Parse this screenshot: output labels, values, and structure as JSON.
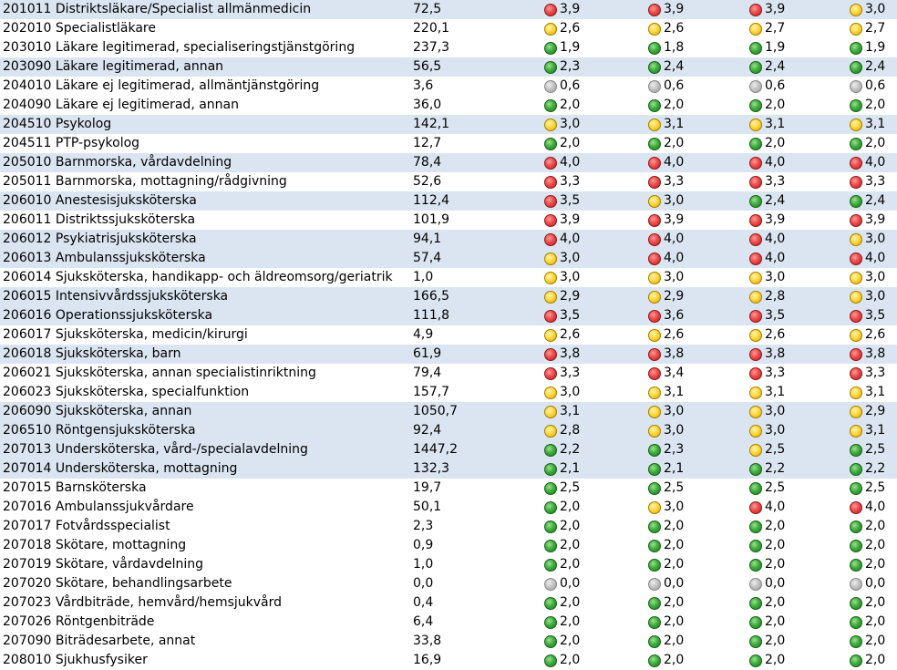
{
  "colors": {
    "row_highlight": "#dbe5f1",
    "status_red": "#ec4b4b",
    "status_yellow": "#ffd83f",
    "status_green": "#3fad3f",
    "status_grey": "#c4c4c4"
  },
  "rows": [
    {
      "code": "201011",
      "title": "Distriktsläkare/Specialist allmänmedicin",
      "value": "72,5",
      "highlight": true,
      "indicators": [
        {
          "status": "red",
          "value": "3,9"
        },
        {
          "status": "red",
          "value": "3,9"
        },
        {
          "status": "red",
          "value": "3,9"
        },
        {
          "status": "yellow",
          "value": "3,0"
        }
      ]
    },
    {
      "code": "202010",
      "title": "Specialistläkare",
      "value": "220,1",
      "highlight": false,
      "indicators": [
        {
          "status": "yellow",
          "value": "2,6"
        },
        {
          "status": "yellow",
          "value": "2,6"
        },
        {
          "status": "yellow",
          "value": "2,7"
        },
        {
          "status": "yellow",
          "value": "2,7"
        }
      ]
    },
    {
      "code": "203010",
      "title": "Läkare legitimerad, specialiseringstjänstgöring",
      "value": "237,3",
      "highlight": false,
      "indicators": [
        {
          "status": "green",
          "value": "1,9"
        },
        {
          "status": "green",
          "value": "1,8"
        },
        {
          "status": "green",
          "value": "1,9"
        },
        {
          "status": "green",
          "value": "1,9"
        }
      ]
    },
    {
      "code": "203090",
      "title": "Läkare legitimerad, annan",
      "value": "56,5",
      "highlight": true,
      "indicators": [
        {
          "status": "green",
          "value": "2,3"
        },
        {
          "status": "green",
          "value": "2,4"
        },
        {
          "status": "green",
          "value": "2,4"
        },
        {
          "status": "green",
          "value": "2,4"
        }
      ]
    },
    {
      "code": "204010",
      "title": "Läkare ej legitimerad, allmäntjänstgöring",
      "value": "3,6",
      "highlight": false,
      "indicators": [
        {
          "status": "grey",
          "value": "0,6"
        },
        {
          "status": "grey",
          "value": "0,6"
        },
        {
          "status": "grey",
          "value": "0,6"
        },
        {
          "status": "grey",
          "value": "0,6"
        }
      ]
    },
    {
      "code": "204090",
      "title": "Läkare ej legitimerad, annan",
      "value": "36,0",
      "highlight": false,
      "indicators": [
        {
          "status": "green",
          "value": "2,0"
        },
        {
          "status": "green",
          "value": "2,0"
        },
        {
          "status": "green",
          "value": "2,0"
        },
        {
          "status": "green",
          "value": "2,0"
        }
      ]
    },
    {
      "code": "204510",
      "title": "Psykolog",
      "value": "142,1",
      "highlight": true,
      "indicators": [
        {
          "status": "yellow",
          "value": "3,0"
        },
        {
          "status": "yellow",
          "value": "3,1"
        },
        {
          "status": "yellow",
          "value": "3,1"
        },
        {
          "status": "yellow",
          "value": "3,1"
        }
      ]
    },
    {
      "code": "204511",
      "title": "PTP-psykolog",
      "value": "12,7",
      "highlight": false,
      "indicators": [
        {
          "status": "green",
          "value": "2,0"
        },
        {
          "status": "green",
          "value": "2,0"
        },
        {
          "status": "green",
          "value": "2,0"
        },
        {
          "status": "green",
          "value": "2,0"
        }
      ]
    },
    {
      "code": "205010",
      "title": "Barnmorska, vårdavdelning",
      "value": "78,4",
      "highlight": true,
      "indicators": [
        {
          "status": "red",
          "value": "4,0"
        },
        {
          "status": "red",
          "value": "4,0"
        },
        {
          "status": "red",
          "value": "4,0"
        },
        {
          "status": "red",
          "value": "4,0"
        }
      ]
    },
    {
      "code": "205011",
      "title": "Barnmorska, mottagning/rådgivning",
      "value": "52,6",
      "highlight": false,
      "indicators": [
        {
          "status": "red",
          "value": "3,3"
        },
        {
          "status": "red",
          "value": "3,3"
        },
        {
          "status": "red",
          "value": "3,3"
        },
        {
          "status": "red",
          "value": "3,3"
        }
      ]
    },
    {
      "code": "206010",
      "title": "Anestesisjuksköterska",
      "value": "112,4",
      "highlight": true,
      "indicators": [
        {
          "status": "red",
          "value": "3,5"
        },
        {
          "status": "yellow",
          "value": "3,0"
        },
        {
          "status": "green",
          "value": "2,4"
        },
        {
          "status": "green",
          "value": "2,4"
        }
      ]
    },
    {
      "code": "206011",
      "title": "Distriktssjuksköterska",
      "value": "101,9",
      "highlight": false,
      "indicators": [
        {
          "status": "red",
          "value": "3,9"
        },
        {
          "status": "red",
          "value": "3,9"
        },
        {
          "status": "red",
          "value": "3,9"
        },
        {
          "status": "red",
          "value": "3,9"
        }
      ]
    },
    {
      "code": "206012",
      "title": "Psykiatrisjuksköterska",
      "value": "94,1",
      "highlight": true,
      "indicators": [
        {
          "status": "red",
          "value": "4,0"
        },
        {
          "status": "red",
          "value": "4,0"
        },
        {
          "status": "red",
          "value": "4,0"
        },
        {
          "status": "yellow",
          "value": "3,0"
        }
      ]
    },
    {
      "code": "206013",
      "title": "Ambulanssjuksköterska",
      "value": "57,4",
      "highlight": true,
      "indicators": [
        {
          "status": "yellow",
          "value": "3,0"
        },
        {
          "status": "red",
          "value": "4,0"
        },
        {
          "status": "red",
          "value": "4,0"
        },
        {
          "status": "red",
          "value": "4,0"
        }
      ]
    },
    {
      "code": "206014",
      "title": "Sjuksköterska, handikapp- och äldreomsorg/geriatrik",
      "value": "1,0",
      "highlight": false,
      "indicators": [
        {
          "status": "yellow",
          "value": "3,0"
        },
        {
          "status": "yellow",
          "value": "3,0"
        },
        {
          "status": "yellow",
          "value": "3,0"
        },
        {
          "status": "yellow",
          "value": "3,0"
        }
      ]
    },
    {
      "code": "206015",
      "title": "Intensivvårdssjuksköterska",
      "value": "166,5",
      "highlight": true,
      "indicators": [
        {
          "status": "yellow",
          "value": "2,9"
        },
        {
          "status": "yellow",
          "value": "2,9"
        },
        {
          "status": "yellow",
          "value": "2,8"
        },
        {
          "status": "yellow",
          "value": "3,0"
        }
      ]
    },
    {
      "code": "206016",
      "title": "Operationssjuksköterska",
      "value": "111,8",
      "highlight": true,
      "indicators": [
        {
          "status": "red",
          "value": "3,5"
        },
        {
          "status": "red",
          "value": "3,6"
        },
        {
          "status": "red",
          "value": "3,5"
        },
        {
          "status": "red",
          "value": "3,5"
        }
      ]
    },
    {
      "code": "206017",
      "title": "Sjuksköterska, medicin/kirurgi",
      "value": "4,9",
      "highlight": false,
      "indicators": [
        {
          "status": "yellow",
          "value": "2,6"
        },
        {
          "status": "yellow",
          "value": "2,6"
        },
        {
          "status": "yellow",
          "value": "2,6"
        },
        {
          "status": "yellow",
          "value": "2,6"
        }
      ]
    },
    {
      "code": "206018",
      "title": "Sjuksköterska, barn",
      "value": "61,9",
      "highlight": true,
      "indicators": [
        {
          "status": "red",
          "value": "3,8"
        },
        {
          "status": "red",
          "value": "3,8"
        },
        {
          "status": "red",
          "value": "3,8"
        },
        {
          "status": "red",
          "value": "3,8"
        }
      ]
    },
    {
      "code": "206021",
      "title": "Sjuksköterska, annan specialistinriktning",
      "value": "79,4",
      "highlight": false,
      "indicators": [
        {
          "status": "red",
          "value": "3,3"
        },
        {
          "status": "red",
          "value": "3,4"
        },
        {
          "status": "red",
          "value": "3,3"
        },
        {
          "status": "red",
          "value": "3,3"
        }
      ]
    },
    {
      "code": "206023",
      "title": "Sjuksköterska, specialfunktion",
      "value": "157,7",
      "highlight": false,
      "indicators": [
        {
          "status": "yellow",
          "value": "3,0"
        },
        {
          "status": "yellow",
          "value": "3,1"
        },
        {
          "status": "yellow",
          "value": "3,1"
        },
        {
          "status": "yellow",
          "value": "3,1"
        }
      ]
    },
    {
      "code": "206090",
      "title": "Sjuksköterska, annan",
      "value": "1050,7",
      "highlight": true,
      "indicators": [
        {
          "status": "yellow",
          "value": "3,1"
        },
        {
          "status": "yellow",
          "value": "3,0"
        },
        {
          "status": "yellow",
          "value": "3,0"
        },
        {
          "status": "yellow",
          "value": "2,9"
        }
      ]
    },
    {
      "code": "206510",
      "title": "Röntgensjuksköterska",
      "value": "92,4",
      "highlight": true,
      "indicators": [
        {
          "status": "yellow",
          "value": "2,8"
        },
        {
          "status": "yellow",
          "value": "3,0"
        },
        {
          "status": "yellow",
          "value": "3,0"
        },
        {
          "status": "yellow",
          "value": "3,1"
        }
      ]
    },
    {
      "code": "207013",
      "title": "Undersköterska, vård-/specialavdelning",
      "value": "1447,2",
      "highlight": true,
      "indicators": [
        {
          "status": "green",
          "value": "2,2"
        },
        {
          "status": "green",
          "value": "2,3"
        },
        {
          "status": "yellow",
          "value": "2,5"
        },
        {
          "status": "green",
          "value": "2,5"
        }
      ]
    },
    {
      "code": "207014",
      "title": "Undersköterska, mottagning",
      "value": "132,3",
      "highlight": true,
      "indicators": [
        {
          "status": "green",
          "value": "2,1"
        },
        {
          "status": "green",
          "value": "2,1"
        },
        {
          "status": "green",
          "value": "2,2"
        },
        {
          "status": "green",
          "value": "2,2"
        }
      ]
    },
    {
      "code": "207015",
      "title": "Barnsköterska",
      "value": "19,7",
      "highlight": false,
      "indicators": [
        {
          "status": "green",
          "value": "2,5"
        },
        {
          "status": "green",
          "value": "2,5"
        },
        {
          "status": "green",
          "value": "2,5"
        },
        {
          "status": "green",
          "value": "2,5"
        }
      ]
    },
    {
      "code": "207016",
      "title": "Ambulanssjukvårdare",
      "value": "50,1",
      "highlight": false,
      "indicators": [
        {
          "status": "green",
          "value": "2,0"
        },
        {
          "status": "yellow",
          "value": "3,0"
        },
        {
          "status": "red",
          "value": "4,0"
        },
        {
          "status": "red",
          "value": "4,0"
        }
      ]
    },
    {
      "code": "207017",
      "title": "Fotvårdsspecialist",
      "value": "2,3",
      "highlight": false,
      "indicators": [
        {
          "status": "green",
          "value": "2,0"
        },
        {
          "status": "green",
          "value": "2,0"
        },
        {
          "status": "green",
          "value": "2,0"
        },
        {
          "status": "green",
          "value": "2,0"
        }
      ]
    },
    {
      "code": "207018",
      "title": "Skötare, mottagning",
      "value": "0,9",
      "highlight": false,
      "indicators": [
        {
          "status": "green",
          "value": "2,0"
        },
        {
          "status": "green",
          "value": "2,0"
        },
        {
          "status": "green",
          "value": "2,0"
        },
        {
          "status": "green",
          "value": "2,0"
        }
      ]
    },
    {
      "code": "207019",
      "title": "Skötare, vårdavdelning",
      "value": "1,0",
      "highlight": false,
      "indicators": [
        {
          "status": "green",
          "value": "2,0"
        },
        {
          "status": "green",
          "value": "2,0"
        },
        {
          "status": "green",
          "value": "2,0"
        },
        {
          "status": "green",
          "value": "2,0"
        }
      ]
    },
    {
      "code": "207020",
      "title": "Skötare, behandlingsarbete",
      "value": "0,0",
      "highlight": false,
      "indicators": [
        {
          "status": "grey",
          "value": "0,0"
        },
        {
          "status": "grey",
          "value": "0,0"
        },
        {
          "status": "grey",
          "value": "0,0"
        },
        {
          "status": "grey",
          "value": "0,0"
        }
      ]
    },
    {
      "code": "207023",
      "title": "Vårdbiträde, hemvård/hemsjukvård",
      "value": "0,4",
      "highlight": false,
      "indicators": [
        {
          "status": "green",
          "value": "2,0"
        },
        {
          "status": "green",
          "value": "2,0"
        },
        {
          "status": "green",
          "value": "2,0"
        },
        {
          "status": "green",
          "value": "2,0"
        }
      ]
    },
    {
      "code": "207026",
      "title": "Röntgenbiträde",
      "value": "6,4",
      "highlight": false,
      "indicators": [
        {
          "status": "green",
          "value": "2,0"
        },
        {
          "status": "green",
          "value": "2,0"
        },
        {
          "status": "green",
          "value": "2,0"
        },
        {
          "status": "green",
          "value": "2,0"
        }
      ]
    },
    {
      "code": "207090",
      "title": "Biträdesarbete, annat",
      "value": "33,8",
      "highlight": false,
      "indicators": [
        {
          "status": "green",
          "value": "2,0"
        },
        {
          "status": "green",
          "value": "2,0"
        },
        {
          "status": "green",
          "value": "2,0"
        },
        {
          "status": "green",
          "value": "2,0"
        }
      ]
    },
    {
      "code": "208010",
      "title": "Sjukhusfysiker",
      "value": "16,9",
      "highlight": false,
      "indicators": [
        {
          "status": "green",
          "value": "2,0"
        },
        {
          "status": "green",
          "value": "2,0"
        },
        {
          "status": "green",
          "value": "2,0"
        },
        {
          "status": "green",
          "value": "2,0"
        }
      ]
    }
  ]
}
